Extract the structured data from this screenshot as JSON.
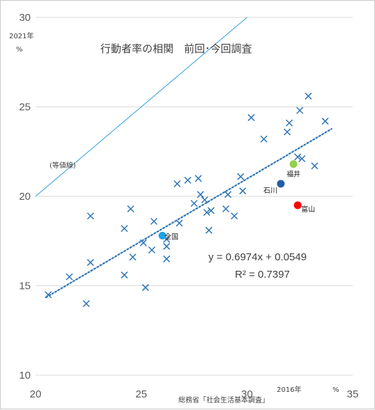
{
  "chart_data": {
    "type": "scatter",
    "title": "行動者率の相関　前回･今回調査",
    "xlabel": "2016年",
    "xunit": "%",
    "ylabel": "2021年",
    "yunit": "%",
    "source": "総務省「社会生活基本調査」",
    "xlim": [
      20,
      35
    ],
    "ylim": [
      10,
      30
    ],
    "xticks": [
      "20",
      "25",
      "30",
      "35"
    ],
    "yticks": [
      "10",
      "15",
      "20",
      "25",
      "30"
    ],
    "grid": "horizontal",
    "equal_line_label": "(等値線)",
    "trendline": {
      "equation": "y = 0.6974x + 0.0549",
      "r2": "R² = 0.7397",
      "slope": 0.6974,
      "intercept": 0.0549,
      "x_range": [
        20.5,
        34.0
      ]
    },
    "series": [
      {
        "marker": "x",
        "color": "#2e75b6",
        "points": [
          [
            20.6,
            14.5
          ],
          [
            21.6,
            15.5
          ],
          [
            22.4,
            14.0
          ],
          [
            22.6,
            16.3
          ],
          [
            22.6,
            18.9
          ],
          [
            24.2,
            18.2
          ],
          [
            24.2,
            15.6
          ],
          [
            24.5,
            19.3
          ],
          [
            24.6,
            16.6
          ],
          [
            25.1,
            17.4
          ],
          [
            25.2,
            14.9
          ],
          [
            25.5,
            17.0
          ],
          [
            25.6,
            18.6
          ],
          [
            26.2,
            17.6
          ],
          [
            26.2,
            17.2
          ],
          [
            26.2,
            16.5
          ],
          [
            26.7,
            20.7
          ],
          [
            26.8,
            18.5
          ],
          [
            27.2,
            20.9
          ],
          [
            27.5,
            19.6
          ],
          [
            27.7,
            21.0
          ],
          [
            27.8,
            20.1
          ],
          [
            28.0,
            19.8
          ],
          [
            28.1,
            19.1
          ],
          [
            28.2,
            18.1
          ],
          [
            28.3,
            19.2
          ],
          [
            29.0,
            19.3
          ],
          [
            29.1,
            20.1
          ],
          [
            29.4,
            18.9
          ],
          [
            29.7,
            21.1
          ],
          [
            29.8,
            20.3
          ],
          [
            30.2,
            24.4
          ],
          [
            30.8,
            23.2
          ],
          [
            31.9,
            23.6
          ],
          [
            32.0,
            24.1
          ],
          [
            32.4,
            22.2
          ],
          [
            32.5,
            24.8
          ],
          [
            32.6,
            22.1
          ],
          [
            32.9,
            25.6
          ],
          [
            33.2,
            21.7
          ],
          [
            33.7,
            24.2
          ]
        ]
      }
    ],
    "highlights": [
      {
        "label": "全国",
        "x": 26.0,
        "y": 17.8,
        "color": "#1aa3e8"
      },
      {
        "label": "石川",
        "x": 31.6,
        "y": 20.7,
        "color": "#1f5fa8"
      },
      {
        "label": "福井",
        "x": 32.2,
        "y": 21.8,
        "color": "#92d050"
      },
      {
        "label": "富山",
        "x": 32.4,
        "y": 19.5,
        "color": "#ff0000"
      }
    ]
  }
}
